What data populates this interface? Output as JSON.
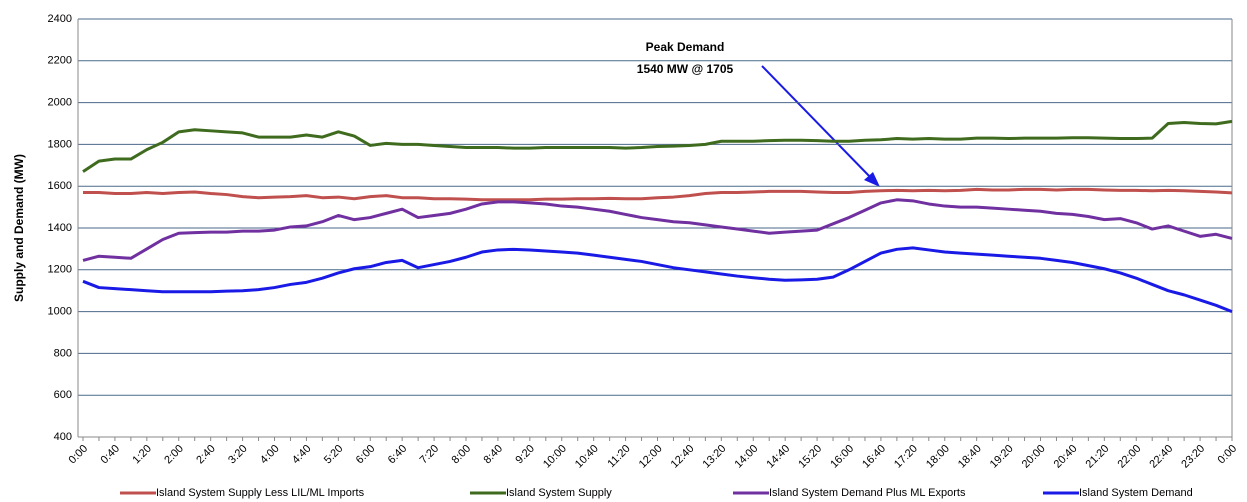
{
  "chart_data": {
    "type": "line",
    "y_label": "Supply and Demand (MW)",
    "annotation": [
      "Peak Demand",
      "1540 MW @ 1705"
    ],
    "categories": [
      "0:00",
      null,
      "0:40",
      null,
      "1:20",
      null,
      "2:00",
      null,
      "2:40",
      null,
      "3:20",
      null,
      "4:00",
      null,
      "4:40",
      null,
      "5:20",
      null,
      "6:00",
      null,
      "6:40",
      null,
      "7:20",
      null,
      "8:00",
      null,
      "8:40",
      null,
      "9:20",
      null,
      "10:00",
      null,
      "10:40",
      null,
      "11:20",
      null,
      "12:00",
      null,
      "12:40",
      null,
      "13:20",
      null,
      "14:00",
      null,
      "14:40",
      null,
      "15:20",
      null,
      "16:00",
      null,
      "16:40",
      null,
      "17:20",
      null,
      "18:00",
      null,
      "18:40",
      null,
      "19:20",
      null,
      "20:00",
      null,
      "20:40",
      null,
      "21:20",
      null,
      "22:00",
      null,
      "22:40",
      null,
      "23:20",
      null,
      "0:00"
    ],
    "series": [
      {
        "name": "Island System Supply Less LIL/ML Imports",
        "color": "#c0504d",
        "values": [
          1570,
          1570,
          1565,
          1565,
          1570,
          1565,
          1570,
          1572,
          1565,
          1560,
          1550,
          1545,
          1548,
          1550,
          1555,
          1545,
          1548,
          1540,
          1550,
          1555,
          1545,
          1545,
          1540,
          1540,
          1538,
          1535,
          1535,
          1535,
          1535,
          1538,
          1538,
          1540,
          1540,
          1542,
          1540,
          1540,
          1545,
          1548,
          1555,
          1565,
          1570,
          1570,
          1572,
          1575,
          1575,
          1575,
          1572,
          1570,
          1570,
          1575,
          1578,
          1580,
          1578,
          1580,
          1578,
          1580,
          1585,
          1582,
          1582,
          1585,
          1585,
          1582,
          1585,
          1585,
          1582,
          1580,
          1580,
          1578,
          1580,
          1578,
          1575,
          1572,
          1568
        ]
      },
      {
        "name": "Island System Supply",
        "color": "#3f6b1e",
        "values": [
          1670,
          1720,
          1730,
          1730,
          1775,
          1810,
          1860,
          1870,
          1865,
          1860,
          1855,
          1835,
          1835,
          1835,
          1845,
          1835,
          1860,
          1840,
          1795,
          1805,
          1800,
          1800,
          1795,
          1790,
          1785,
          1785,
          1785,
          1782,
          1782,
          1785,
          1785,
          1785,
          1785,
          1785,
          1782,
          1785,
          1790,
          1792,
          1795,
          1800,
          1815,
          1815,
          1815,
          1818,
          1820,
          1820,
          1818,
          1815,
          1815,
          1820,
          1822,
          1828,
          1825,
          1828,
          1825,
          1825,
          1830,
          1830,
          1828,
          1830,
          1830,
          1830,
          1832,
          1832,
          1830,
          1828,
          1828,
          1830,
          1900,
          1905,
          1900,
          1898,
          1910
        ]
      },
      {
        "name": "Island System Demand Plus ML Exports",
        "color": "#7030a0",
        "values": [
          1245,
          1265,
          1260,
          1255,
          1300,
          1345,
          1375,
          1378,
          1380,
          1380,
          1385,
          1385,
          1390,
          1405,
          1410,
          1430,
          1460,
          1440,
          1450,
          1470,
          1490,
          1450,
          1460,
          1470,
          1490,
          1515,
          1525,
          1525,
          1520,
          1515,
          1505,
          1500,
          1490,
          1480,
          1465,
          1450,
          1440,
          1430,
          1425,
          1415,
          1405,
          1395,
          1385,
          1375,
          1380,
          1385,
          1390,
          1420,
          1450,
          1485,
          1520,
          1535,
          1530,
          1515,
          1505,
          1500,
          1500,
          1495,
          1490,
          1485,
          1480,
          1470,
          1465,
          1455,
          1440,
          1445,
          1425,
          1395,
          1410,
          1385,
          1360,
          1370,
          1350
        ]
      },
      {
        "name": "Island System Demand",
        "color": "#1a1ae6",
        "values": [
          1145,
          1115,
          1110,
          1105,
          1100,
          1095,
          1095,
          1095,
          1095,
          1098,
          1100,
          1105,
          1115,
          1130,
          1140,
          1160,
          1185,
          1205,
          1215,
          1235,
          1245,
          1210,
          1225,
          1240,
          1260,
          1285,
          1295,
          1298,
          1295,
          1290,
          1285,
          1280,
          1270,
          1260,
          1250,
          1240,
          1225,
          1210,
          1200,
          1190,
          1180,
          1170,
          1162,
          1155,
          1150,
          1152,
          1155,
          1165,
          1200,
          1240,
          1280,
          1298,
          1305,
          1295,
          1285,
          1280,
          1275,
          1270,
          1265,
          1260,
          1255,
          1245,
          1235,
          1220,
          1205,
          1185,
          1160,
          1130,
          1100,
          1080,
          1055,
          1030,
          1000
        ]
      }
    ],
    "ylim": [
      400,
      2400
    ],
    "yticks": [
      400,
      600,
      800,
      1000,
      1200,
      1400,
      1600,
      1800,
      2000,
      2200,
      2400
    ],
    "grid": true
  }
}
